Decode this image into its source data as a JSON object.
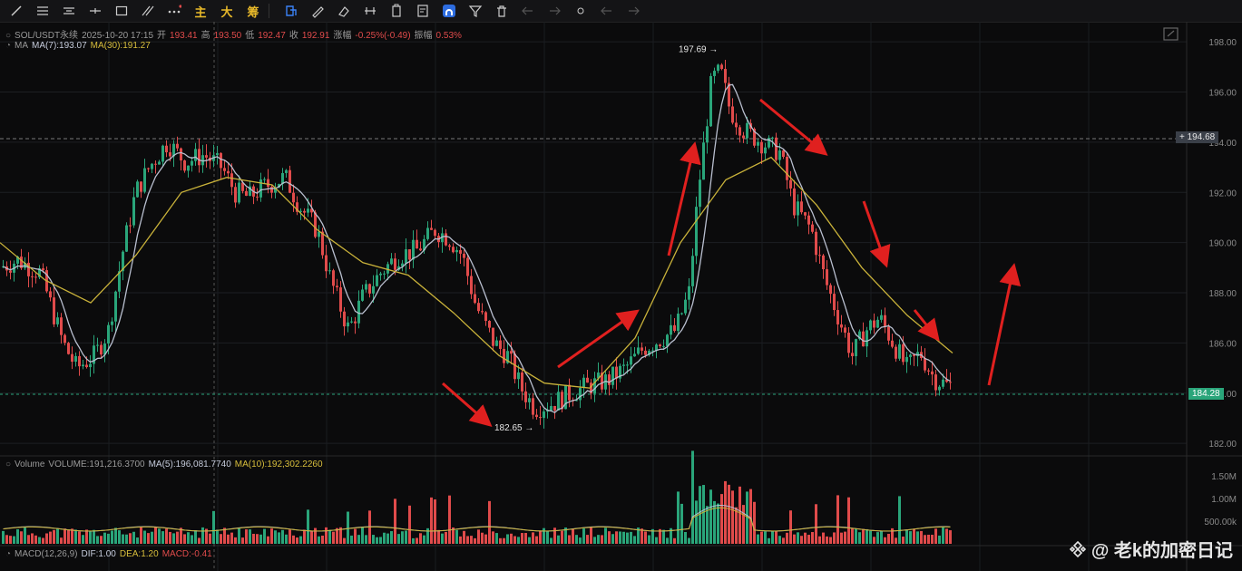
{
  "toolbar": {
    "tools": [
      "line-tool-icon",
      "horizontal-lines-icon",
      "parallel-lines-icon",
      "cross-line-icon",
      "rectangle-icon",
      "fibonacci-icon",
      "more-icon"
    ],
    "text_buttons": [
      "主",
      "大",
      "筹"
    ],
    "tools2": [
      "measure-icon",
      "brush-icon",
      "eraser-icon",
      "cursor-select-icon",
      "ruler-icon",
      "pen-icon",
      "pattern-icon",
      "lock-icon",
      "note-icon",
      "magnet-icon",
      "filter-icon",
      "trash-icon",
      "undo-icon",
      "redo-icon"
    ]
  },
  "header": {
    "symbol": "SOL/USDT永续",
    "datetime": "2025-10-20 17:15",
    "open_label": "开",
    "open": "193.41",
    "high_label": "高",
    "high": "193.50",
    "low_label": "低",
    "low": "192.47",
    "close_label": "收",
    "close": "192.91",
    "change_label": "涨幅",
    "change": "-0.25%(-0.49)",
    "amp_label": "振幅",
    "amp": "0.53%"
  },
  "ma_legend": {
    "name": "MA",
    "ma7": "MA(7):193.07",
    "ma30": "MA(30):191.27"
  },
  "volume_legend": {
    "name": "Volume",
    "volume": "VOLUME:191,216.3700",
    "ma5": "MA(5):196,081.7740",
    "ma10": "MA(10):192,302.2260"
  },
  "macd_legend": {
    "name": "MACD(12,26,9)",
    "dif": "DIF:1.00",
    "dea": "DEA:1.20",
    "macd": "MACD:-0.41"
  },
  "crosshair_price": "194.68",
  "last_price": "184.28",
  "watermark": "@ 老k的加密日记",
  "colors": {
    "up": "#2aa57a",
    "down": "#e04b4b",
    "ma7": "#b9bfcf",
    "ma30": "#c9b23a",
    "arrow": "#e0201f"
  },
  "chart_data": {
    "type": "candlestick",
    "y_axis": {
      "range": [
        181.5,
        198.8
      ],
      "ticks": [
        182.0,
        184.0,
        186.0,
        188.0,
        190.0,
        192.0,
        194.0,
        196.0,
        198.0
      ]
    },
    "volume_axis": {
      "ticks": [
        "500.00k",
        "1.00M",
        "1.50M"
      ]
    },
    "annotations": {
      "high": "197.69",
      "low": "182.65"
    },
    "ma30_anchor_values": [
      190.0,
      188.5,
      187.6,
      189.5,
      192.0,
      192.6,
      192.3,
      190.5,
      189.2,
      188.7,
      187.2,
      185.5,
      184.4,
      184.2,
      186.2,
      190.0,
      192.5,
      193.4,
      191.5,
      189.0,
      187.1,
      185.6
    ]
  }
}
